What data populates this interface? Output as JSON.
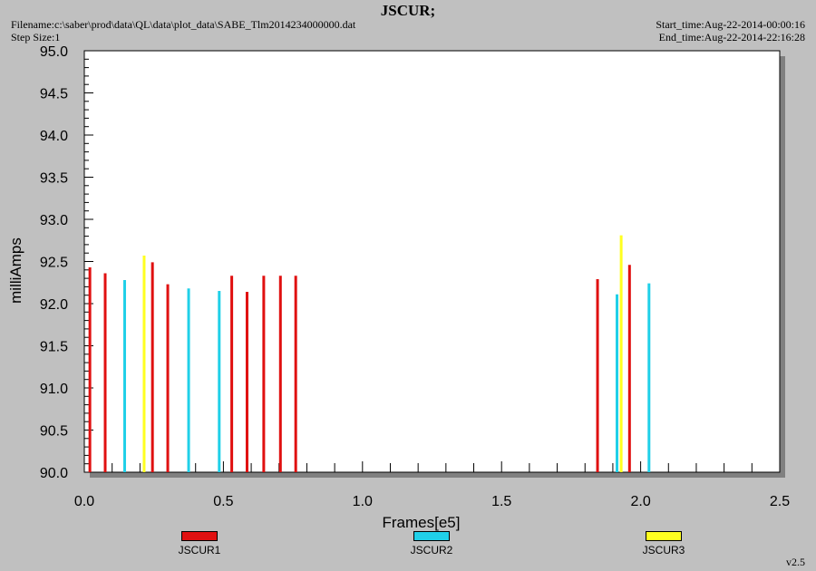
{
  "header": {
    "title": "JSCUR;",
    "filename": "Filename:c:\\saber\\prod\\data\\QL\\data\\plot_data\\SABE_Tlm2014234000000.dat",
    "step_size": "Step Size:1",
    "start_time": "Start_time:Aug-22-2014-00:00:16",
    "end_time": "End_time:Aug-22-2014-22:16:28"
  },
  "footer": {
    "version": "v2.5"
  },
  "chart_data": {
    "type": "bar",
    "title": "JSCUR;",
    "xlabel": "Frames[e5]",
    "ylabel": "milliAmps",
    "xlim": [
      0,
      2.5
    ],
    "ylim": [
      90.0,
      95.0
    ],
    "xticks": [
      "0.0",
      "0.5",
      "1.0",
      "1.5",
      "2.0",
      "2.5"
    ],
    "yticks": [
      "90.0",
      "90.5",
      "91.0",
      "91.5",
      "92.0",
      "92.5",
      "93.0",
      "93.5",
      "94.0",
      "94.5",
      "95.0"
    ],
    "legend_position": "bottom",
    "grid": false,
    "series": [
      {
        "name": "JSCUR1",
        "color": "#e01010",
        "points": [
          {
            "x": 0.02,
            "y": 92.43
          },
          {
            "x": 0.075,
            "y": 92.36
          },
          {
            "x": 0.245,
            "y": 92.49
          },
          {
            "x": 0.3,
            "y": 92.23
          },
          {
            "x": 0.53,
            "y": 92.33
          },
          {
            "x": 0.585,
            "y": 92.14
          },
          {
            "x": 0.645,
            "y": 92.33
          },
          {
            "x": 0.705,
            "y": 92.33
          },
          {
            "x": 0.76,
            "y": 92.33
          },
          {
            "x": 1.845,
            "y": 92.29
          },
          {
            "x": 1.96,
            "y": 92.46
          }
        ]
      },
      {
        "name": "JSCUR2",
        "color": "#20d0e8",
        "points": [
          {
            "x": 0.145,
            "y": 92.28
          },
          {
            "x": 0.375,
            "y": 92.18
          },
          {
            "x": 0.485,
            "y": 92.15
          },
          {
            "x": 1.915,
            "y": 92.11
          },
          {
            "x": 2.03,
            "y": 92.24
          }
        ]
      },
      {
        "name": "JSCUR3",
        "color": "#ffff20",
        "points": [
          {
            "x": 0.215,
            "y": 92.57
          },
          {
            "x": 1.93,
            "y": 92.81
          }
        ]
      }
    ]
  }
}
